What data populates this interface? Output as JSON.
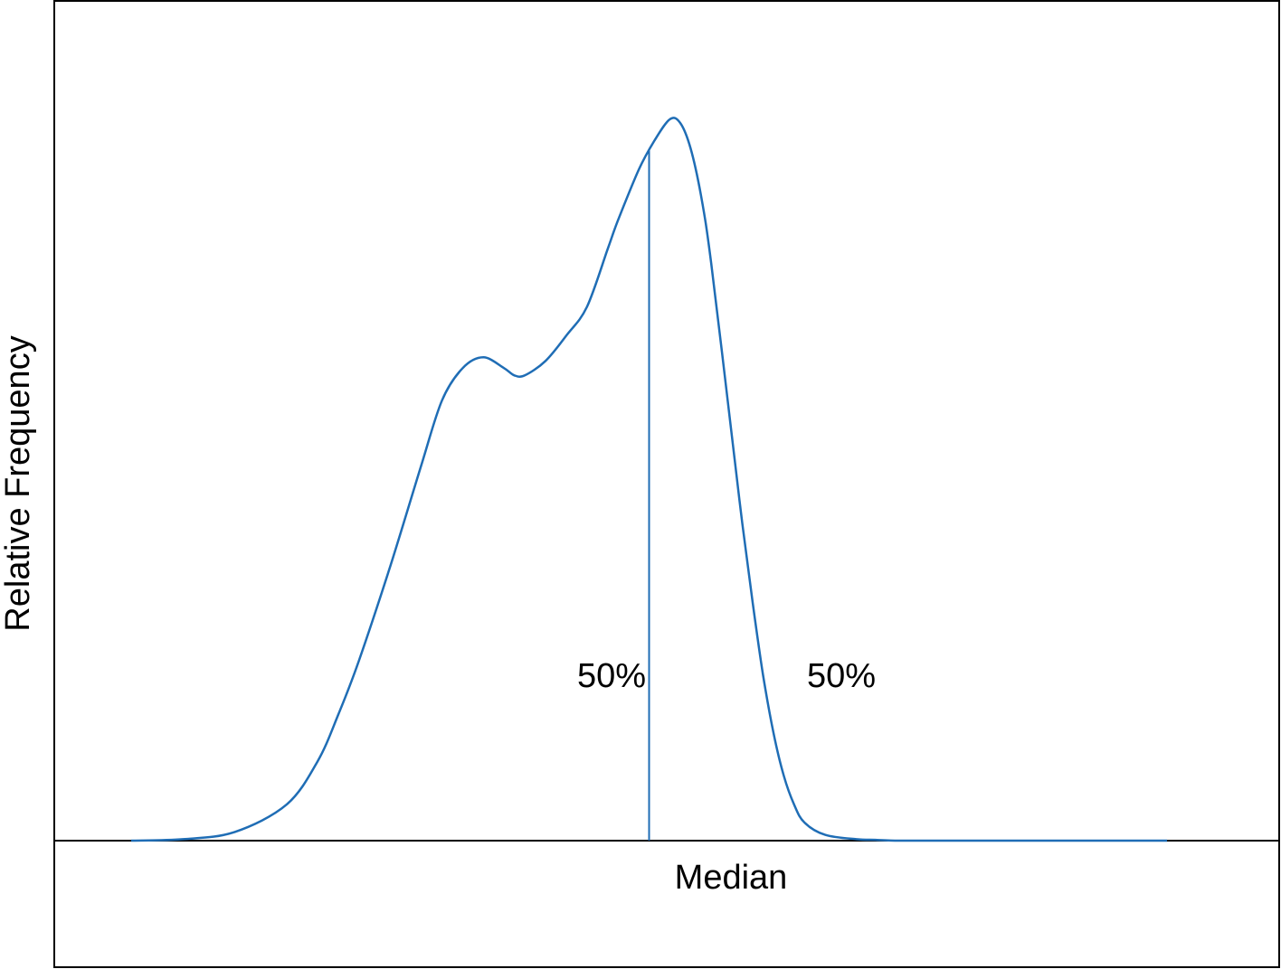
{
  "chart_data": {
    "type": "area",
    "title": "",
    "xlabel": "Median",
    "ylabel": "Relative Frequency",
    "grid": false,
    "legend": "none",
    "x_ticks": "none",
    "y_ticks": "none",
    "xlim": [
      0,
      100
    ],
    "ylim": [
      0,
      100
    ],
    "line_color": "#1f6db5",
    "axis_color": "#000000",
    "series": [
      {
        "x": [
          0,
          5,
          10,
          15,
          18,
          20,
          22,
          25,
          28,
          30,
          32,
          34,
          36,
          37,
          38,
          40,
          42,
          44,
          46,
          47,
          49,
          50.5,
          52,
          53,
          54,
          55,
          56,
          58,
          59,
          60,
          61,
          62,
          63,
          64,
          65,
          67,
          70,
          72,
          74,
          75,
          77,
          80,
          83,
          88,
          95,
          100
        ],
        "y": [
          0,
          0.2,
          1.2,
          5,
          11,
          17.5,
          25,
          38,
          52,
          61,
          65.5,
          67,
          65.5,
          64.5,
          64.5,
          66.5,
          70,
          74,
          82,
          86,
          93,
          97,
          100,
          99.5,
          96,
          89.5,
          80,
          56,
          44,
          33,
          23,
          15,
          9,
          5,
          2.5,
          0.8,
          0.2,
          0.1,
          0,
          0,
          0,
          0,
          0,
          0,
          0,
          0
        ]
      }
    ],
    "median_x": 50,
    "annotations": [
      {
        "text": "50%",
        "side": "left"
      },
      {
        "text": "50%",
        "side": "right"
      }
    ]
  }
}
